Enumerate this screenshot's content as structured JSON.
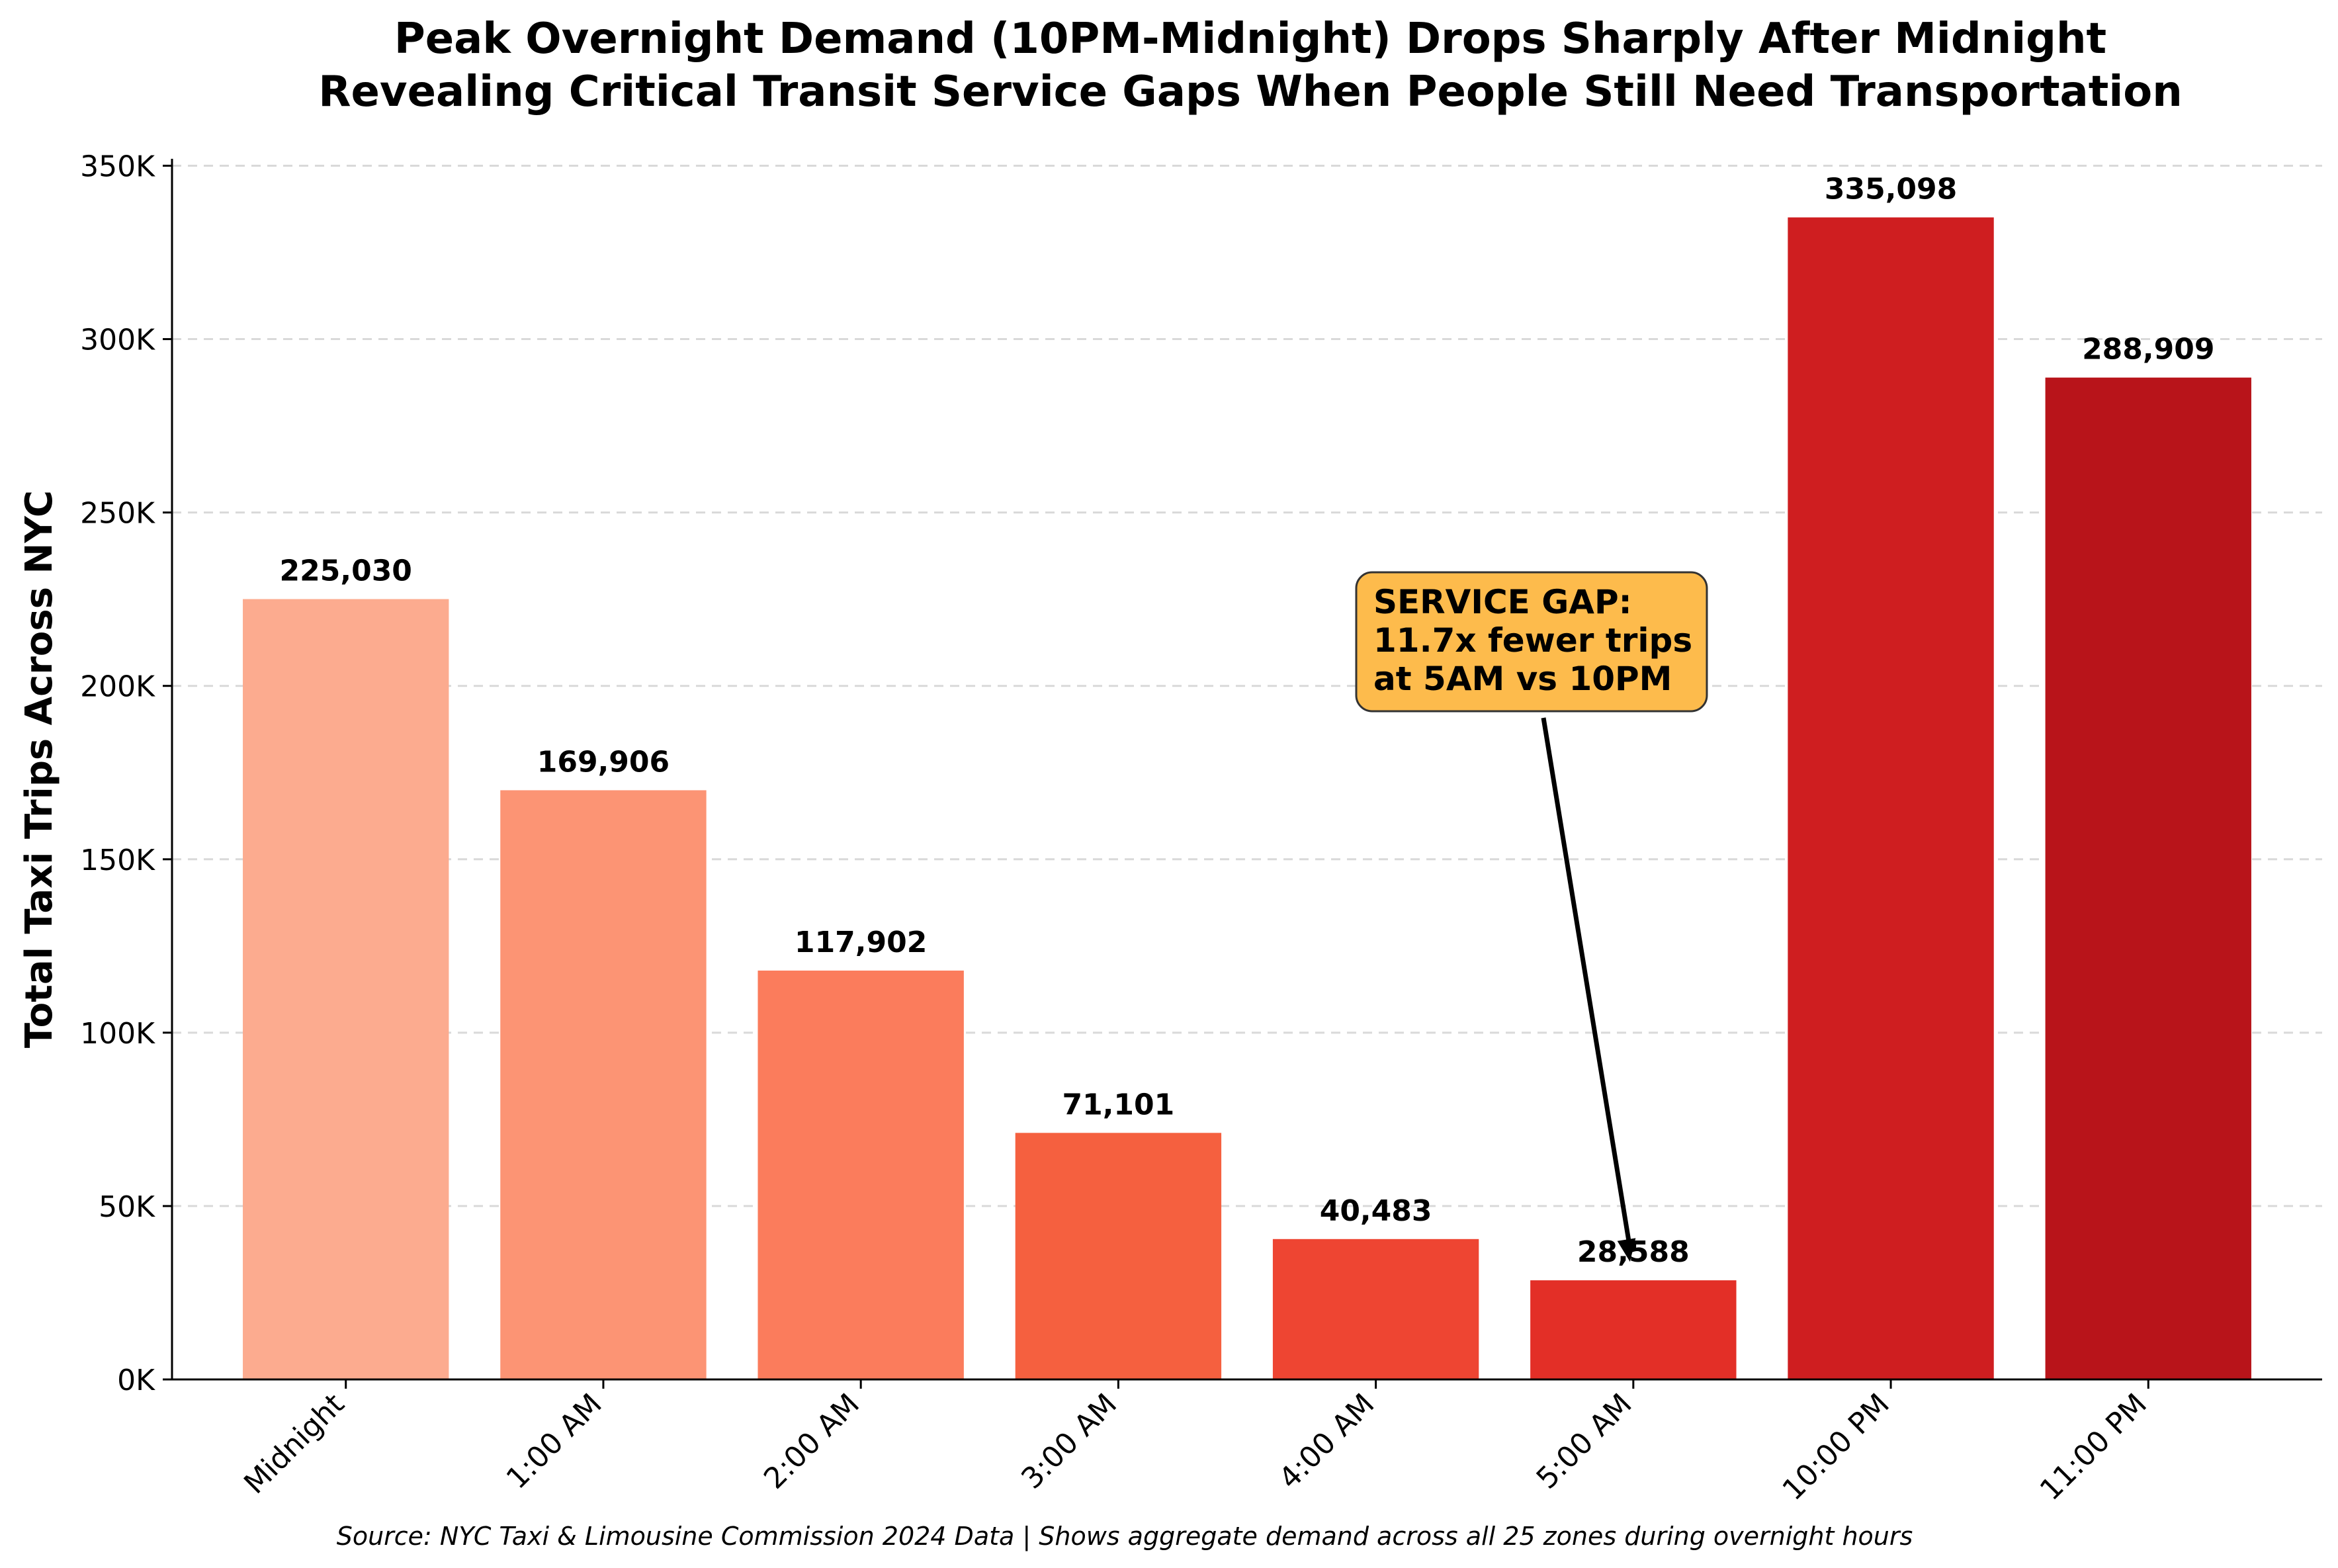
{
  "chart_data": {
    "type": "bar",
    "title": [
      "Peak Overnight Demand (10PM-Midnight) Drops Sharply After Midnight",
      "Revealing Critical Transit Service Gaps When People Still Need Transportation"
    ],
    "xlabel": "",
    "ylabel": "Total Taxi Trips Across NYC",
    "ylim": [
      0,
      352000
    ],
    "yticks": [
      0,
      50000,
      100000,
      150000,
      200000,
      250000,
      300000,
      350000
    ],
    "ytick_labels": [
      "0K",
      "50K",
      "100K",
      "150K",
      "200K",
      "250K",
      "300K",
      "350K"
    ],
    "grid": "y-dashed",
    "categories": [
      "Midnight",
      "1:00 AM",
      "2:00 AM",
      "3:00 AM",
      "4:00 AM",
      "5:00 AM",
      "10:00 PM",
      "11:00 PM"
    ],
    "values": [
      225030,
      169906,
      117902,
      71101,
      40483,
      28588,
      335098,
      288909
    ],
    "value_labels": [
      "225,030",
      "169,906",
      "117,902",
      "71,101",
      "40,483",
      "28,588",
      "335,098",
      "288,909"
    ],
    "colors": [
      "#fcab8f",
      "#fc9474",
      "#fb7c5c",
      "#f5603f",
      "#ee4532",
      "#e32f27",
      "#cf1e20",
      "#b8141a"
    ],
    "annotation": {
      "lines": [
        "SERVICE GAP:",
        "11.7x fewer trips",
        "at 5AM vs 10PM"
      ],
      "target_category": "5:00 AM",
      "target_value": 28588,
      "box_color": "#fdbb4c"
    },
    "source": "Source: NYC Taxi & Limousine Commission 2024 Data | Shows aggregate demand across all 25 zones during overnight hours"
  }
}
